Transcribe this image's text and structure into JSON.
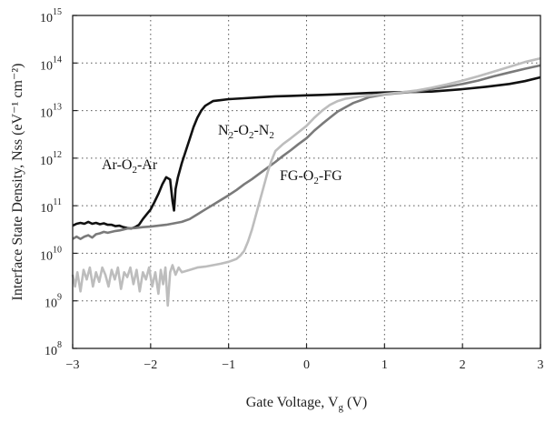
{
  "chart_data": {
    "type": "line",
    "title": "",
    "xlabel": "Gate Voltage, V",
    "xlabel_sub": "g",
    "xlabel_tail": " (V)",
    "ylabel": "Interface State Density, Nss (eV⁻¹ cm⁻²)",
    "x_scale": "linear",
    "y_scale": "log",
    "xlim": [
      -3,
      3
    ],
    "ylim_log10": [
      8,
      15
    ],
    "grid": "dotted",
    "legend": "none (inline labels)",
    "x_ticks": [
      "−3",
      "−2",
      "−1",
      "0",
      "1",
      "2",
      "3"
    ],
    "y_ticks": [
      {
        "base": "10",
        "exp": "8"
      },
      {
        "base": "10",
        "exp": "9"
      },
      {
        "base": "10",
        "exp": "10"
      },
      {
        "base": "10",
        "exp": "11"
      },
      {
        "base": "10",
        "exp": "12"
      },
      {
        "base": "10",
        "exp": "13"
      },
      {
        "base": "10",
        "exp": "14"
      },
      {
        "base": "10",
        "exp": "15"
      }
    ],
    "series": [
      {
        "name": "Ar-O2-Ar",
        "label_parts": [
          "Ar-O",
          "2",
          "-Ar"
        ],
        "color": "#111111",
        "log10_y": true,
        "points": [
          [
            -3.0,
            10.58
          ],
          [
            -2.95,
            10.62
          ],
          [
            -2.9,
            10.64
          ],
          [
            -2.85,
            10.62
          ],
          [
            -2.8,
            10.66
          ],
          [
            -2.75,
            10.62
          ],
          [
            -2.7,
            10.64
          ],
          [
            -2.65,
            10.61
          ],
          [
            -2.6,
            10.63
          ],
          [
            -2.55,
            10.6
          ],
          [
            -2.5,
            10.6
          ],
          [
            -2.45,
            10.57
          ],
          [
            -2.4,
            10.58
          ],
          [
            -2.35,
            10.55
          ],
          [
            -2.3,
            10.53
          ],
          [
            -2.25,
            10.52
          ],
          [
            -2.2,
            10.55
          ],
          [
            -2.15,
            10.6
          ],
          [
            -2.1,
            10.72
          ],
          [
            -2.05,
            10.82
          ],
          [
            -2.0,
            10.92
          ],
          [
            -1.95,
            11.08
          ],
          [
            -1.9,
            11.25
          ],
          [
            -1.85,
            11.45
          ],
          [
            -1.8,
            11.6
          ],
          [
            -1.75,
            11.55
          ],
          [
            -1.72,
            11.1
          ],
          [
            -1.7,
            10.9
          ],
          [
            -1.68,
            11.35
          ],
          [
            -1.65,
            11.6
          ],
          [
            -1.6,
            11.9
          ],
          [
            -1.55,
            12.15
          ],
          [
            -1.5,
            12.4
          ],
          [
            -1.45,
            12.65
          ],
          [
            -1.4,
            12.85
          ],
          [
            -1.35,
            13.0
          ],
          [
            -1.3,
            13.1
          ],
          [
            -1.25,
            13.15
          ],
          [
            -1.2,
            13.2
          ],
          [
            -1.1,
            13.22
          ],
          [
            -1.0,
            13.24
          ],
          [
            -0.8,
            13.26
          ],
          [
            -0.6,
            13.28
          ],
          [
            -0.4,
            13.3
          ],
          [
            -0.2,
            13.31
          ],
          [
            0.0,
            13.32
          ],
          [
            0.2,
            13.33
          ],
          [
            0.5,
            13.35
          ],
          [
            0.8,
            13.37
          ],
          [
            1.0,
            13.38
          ],
          [
            1.3,
            13.39
          ],
          [
            1.6,
            13.4
          ],
          [
            2.0,
            13.45
          ],
          [
            2.3,
            13.5
          ],
          [
            2.6,
            13.56
          ],
          [
            2.8,
            13.62
          ],
          [
            3.0,
            13.7
          ]
        ]
      },
      {
        "name": "N2-O2-N2",
        "label_parts": [
          "N",
          "2",
          "-O",
          "2",
          "-N",
          "2"
        ],
        "color": "#7a7a7a",
        "log10_y": true,
        "points": [
          [
            -3.0,
            10.3
          ],
          [
            -2.95,
            10.35
          ],
          [
            -2.9,
            10.3
          ],
          [
            -2.85,
            10.35
          ],
          [
            -2.8,
            10.38
          ],
          [
            -2.75,
            10.33
          ],
          [
            -2.7,
            10.4
          ],
          [
            -2.65,
            10.42
          ],
          [
            -2.6,
            10.45
          ],
          [
            -2.55,
            10.43
          ],
          [
            -2.5,
            10.45
          ],
          [
            -2.45,
            10.47
          ],
          [
            -2.4,
            10.48
          ],
          [
            -2.35,
            10.5
          ],
          [
            -2.3,
            10.52
          ],
          [
            -2.2,
            10.53
          ],
          [
            -2.1,
            10.55
          ],
          [
            -2.0,
            10.56
          ],
          [
            -1.9,
            10.58
          ],
          [
            -1.8,
            10.6
          ],
          [
            -1.7,
            10.63
          ],
          [
            -1.6,
            10.66
          ],
          [
            -1.5,
            10.72
          ],
          [
            -1.4,
            10.82
          ],
          [
            -1.3,
            10.92
          ],
          [
            -1.2,
            11.02
          ],
          [
            -1.1,
            11.12
          ],
          [
            -1.0,
            11.22
          ],
          [
            -0.9,
            11.33
          ],
          [
            -0.8,
            11.45
          ],
          [
            -0.7,
            11.56
          ],
          [
            -0.6,
            11.68
          ],
          [
            -0.5,
            11.8
          ],
          [
            -0.4,
            11.92
          ],
          [
            -0.3,
            12.05
          ],
          [
            -0.2,
            12.17
          ],
          [
            -0.1,
            12.3
          ],
          [
            0.0,
            12.42
          ],
          [
            0.1,
            12.58
          ],
          [
            0.2,
            12.72
          ],
          [
            0.3,
            12.85
          ],
          [
            0.4,
            12.98
          ],
          [
            0.5,
            13.07
          ],
          [
            0.6,
            13.16
          ],
          [
            0.7,
            13.22
          ],
          [
            0.8,
            13.28
          ],
          [
            0.9,
            13.31
          ],
          [
            1.0,
            13.34
          ],
          [
            1.2,
            13.37
          ],
          [
            1.4,
            13.4
          ],
          [
            1.6,
            13.45
          ],
          [
            1.8,
            13.5
          ],
          [
            2.0,
            13.56
          ],
          [
            2.2,
            13.63
          ],
          [
            2.4,
            13.72
          ],
          [
            2.6,
            13.8
          ],
          [
            2.8,
            13.88
          ],
          [
            3.0,
            13.95
          ]
        ]
      },
      {
        "name": "FG-O2-FG",
        "label_parts": [
          "FG-O",
          "2",
          "-FG"
        ],
        "color": "#bdbdbd",
        "log10_y": true,
        "points": [
          [
            -3.0,
            9.55
          ],
          [
            -2.97,
            9.3
          ],
          [
            -2.94,
            9.6
          ],
          [
            -2.9,
            9.2
          ],
          [
            -2.86,
            9.65
          ],
          [
            -2.82,
            9.45
          ],
          [
            -2.78,
            9.7
          ],
          [
            -2.74,
            9.3
          ],
          [
            -2.7,
            9.6
          ],
          [
            -2.66,
            9.4
          ],
          [
            -2.62,
            9.7
          ],
          [
            -2.58,
            9.55
          ],
          [
            -2.54,
            9.3
          ],
          [
            -2.5,
            9.65
          ],
          [
            -2.46,
            9.45
          ],
          [
            -2.42,
            9.7
          ],
          [
            -2.38,
            9.25
          ],
          [
            -2.34,
            9.6
          ],
          [
            -2.3,
            9.5
          ],
          [
            -2.26,
            9.7
          ],
          [
            -2.22,
            9.35
          ],
          [
            -2.18,
            9.65
          ],
          [
            -2.14,
            9.2
          ],
          [
            -2.1,
            9.6
          ],
          [
            -2.06,
            9.45
          ],
          [
            -2.02,
            9.7
          ],
          [
            -1.98,
            9.3
          ],
          [
            -1.94,
            9.6
          ],
          [
            -1.9,
            9.15
          ],
          [
            -1.87,
            9.65
          ],
          [
            -1.84,
            9.35
          ],
          [
            -1.81,
            9.7
          ],
          [
            -1.78,
            8.9
          ],
          [
            -1.75,
            9.6
          ],
          [
            -1.72,
            9.75
          ],
          [
            -1.68,
            9.55
          ],
          [
            -1.64,
            9.7
          ],
          [
            -1.6,
            9.6
          ],
          [
            -1.5,
            9.65
          ],
          [
            -1.4,
            9.7
          ],
          [
            -1.3,
            9.72
          ],
          [
            -1.2,
            9.75
          ],
          [
            -1.1,
            9.78
          ],
          [
            -1.0,
            9.82
          ],
          [
            -0.9,
            9.88
          ],
          [
            -0.85,
            9.95
          ],
          [
            -0.8,
            10.05
          ],
          [
            -0.75,
            10.25
          ],
          [
            -0.7,
            10.5
          ],
          [
            -0.65,
            10.8
          ],
          [
            -0.6,
            11.1
          ],
          [
            -0.55,
            11.4
          ],
          [
            -0.5,
            11.7
          ],
          [
            -0.45,
            11.95
          ],
          [
            -0.4,
            12.15
          ],
          [
            -0.3,
            12.3
          ],
          [
            -0.2,
            12.42
          ],
          [
            -0.1,
            12.55
          ],
          [
            0.0,
            12.68
          ],
          [
            0.1,
            12.85
          ],
          [
            0.2,
            13.0
          ],
          [
            0.3,
            13.12
          ],
          [
            0.4,
            13.2
          ],
          [
            0.5,
            13.25
          ],
          [
            0.7,
            13.3
          ],
          [
            0.9,
            13.33
          ],
          [
            1.0,
            13.35
          ],
          [
            1.2,
            13.38
          ],
          [
            1.4,
            13.42
          ],
          [
            1.6,
            13.48
          ],
          [
            1.8,
            13.55
          ],
          [
            2.0,
            13.63
          ],
          [
            2.2,
            13.72
          ],
          [
            2.4,
            13.82
          ],
          [
            2.6,
            13.92
          ],
          [
            2.8,
            14.02
          ],
          [
            3.0,
            14.1
          ]
        ]
      }
    ]
  }
}
